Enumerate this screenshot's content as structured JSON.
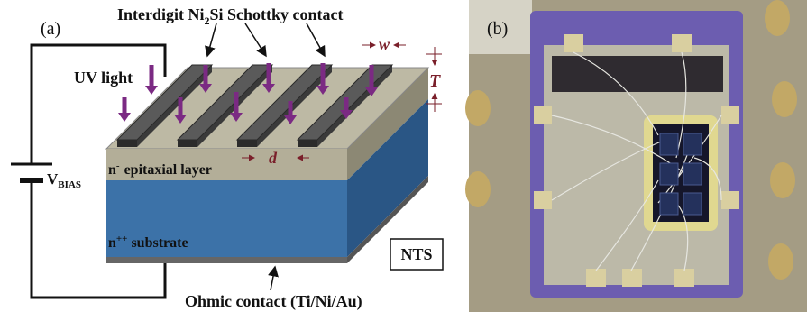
{
  "panel_a": {
    "label": "(a)",
    "contact_label": {
      "prefix": "Interdigit Ni",
      "subscript": "2",
      "suffix": "Si Schottky contact"
    },
    "width_symbol": "w",
    "thickness_symbol": "T",
    "uv_label": "UV light",
    "bias_label": {
      "prefix": "V",
      "subscript": "BIAS"
    },
    "epi_label": {
      "prefix": "n",
      "superscript": "-",
      "suffix": "epitaxial layer"
    },
    "spacing_symbol": "d",
    "substrate_label": {
      "prefix": "n",
      "superscript": "++",
      "suffix": "substrate"
    },
    "badge": "NTS",
    "ohmic_label": "Ohmic contact (Ti/Ni/Au)"
  },
  "panel_b": {
    "label": "(b)"
  }
}
